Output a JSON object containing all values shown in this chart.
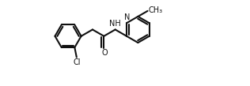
{
  "bg": "#ffffff",
  "lc": "#101010",
  "lw": 1.5,
  "fs": 7.0,
  "fw": 3.16,
  "fh": 1.09,
  "dpi": 100,
  "bl": 0.38,
  "xlim": [
    -0.1,
    5.5
  ],
  "ylim": [
    -0.5,
    2.0
  ]
}
